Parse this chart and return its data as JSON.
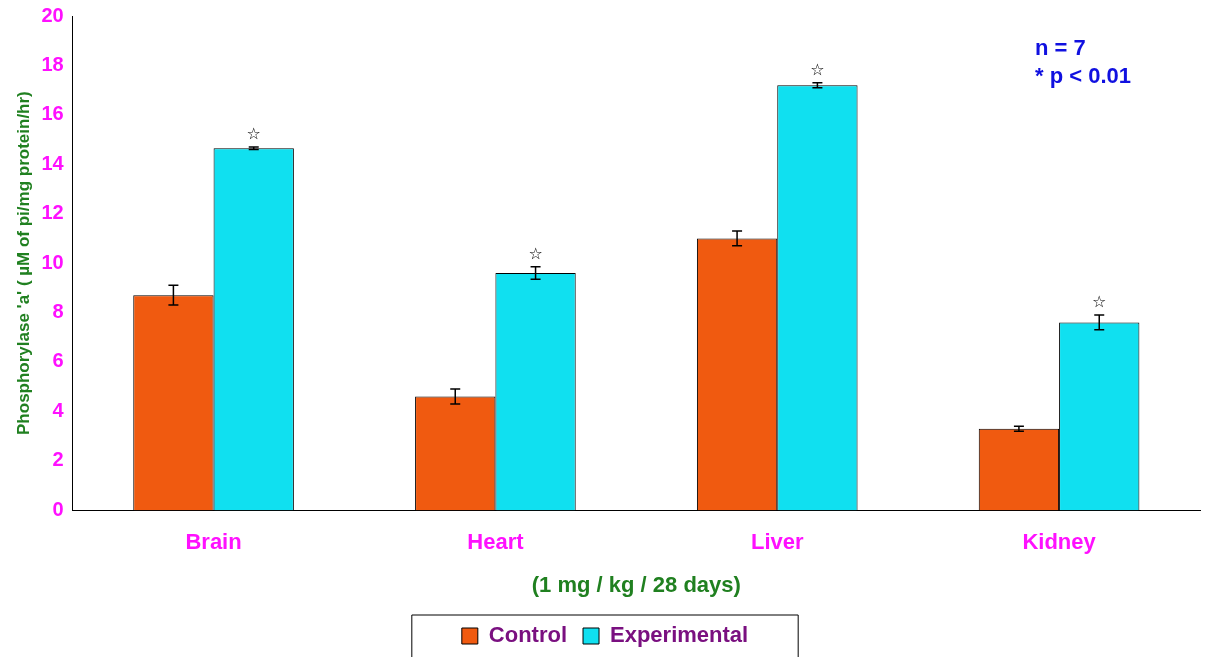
{
  "chart_data": {
    "type": "bar",
    "ylabel": "Phosphorylase 'a' ( µM of pi/mg protein/hr)",
    "xlabel": "(1 mg / kg / 28 days)",
    "categories": [
      "Brain",
      "Heart",
      "Liver",
      "Kidney"
    ],
    "series": [
      {
        "name": "Control",
        "color": "#f05a10",
        "values": [
          8.7,
          4.6,
          11.0,
          3.3
        ],
        "errors": [
          0.4,
          0.3,
          0.3,
          0.1
        ]
      },
      {
        "name": "Experimental",
        "color": "#10e0f0",
        "values": [
          14.65,
          9.6,
          17.2,
          7.6
        ],
        "errors": [
          0.05,
          0.25,
          0.1,
          0.3
        ],
        "value_labels": [
          "☆",
          "☆",
          "☆",
          "☆"
        ]
      }
    ],
    "ylim": [
      0,
      20
    ],
    "yticks": [
      0,
      2,
      4,
      6,
      8,
      10,
      12,
      14,
      16,
      18,
      20
    ],
    "grid": false,
    "legend": "bottom",
    "annotations": [
      "n = 7",
      "* p < 0.01"
    ]
  }
}
